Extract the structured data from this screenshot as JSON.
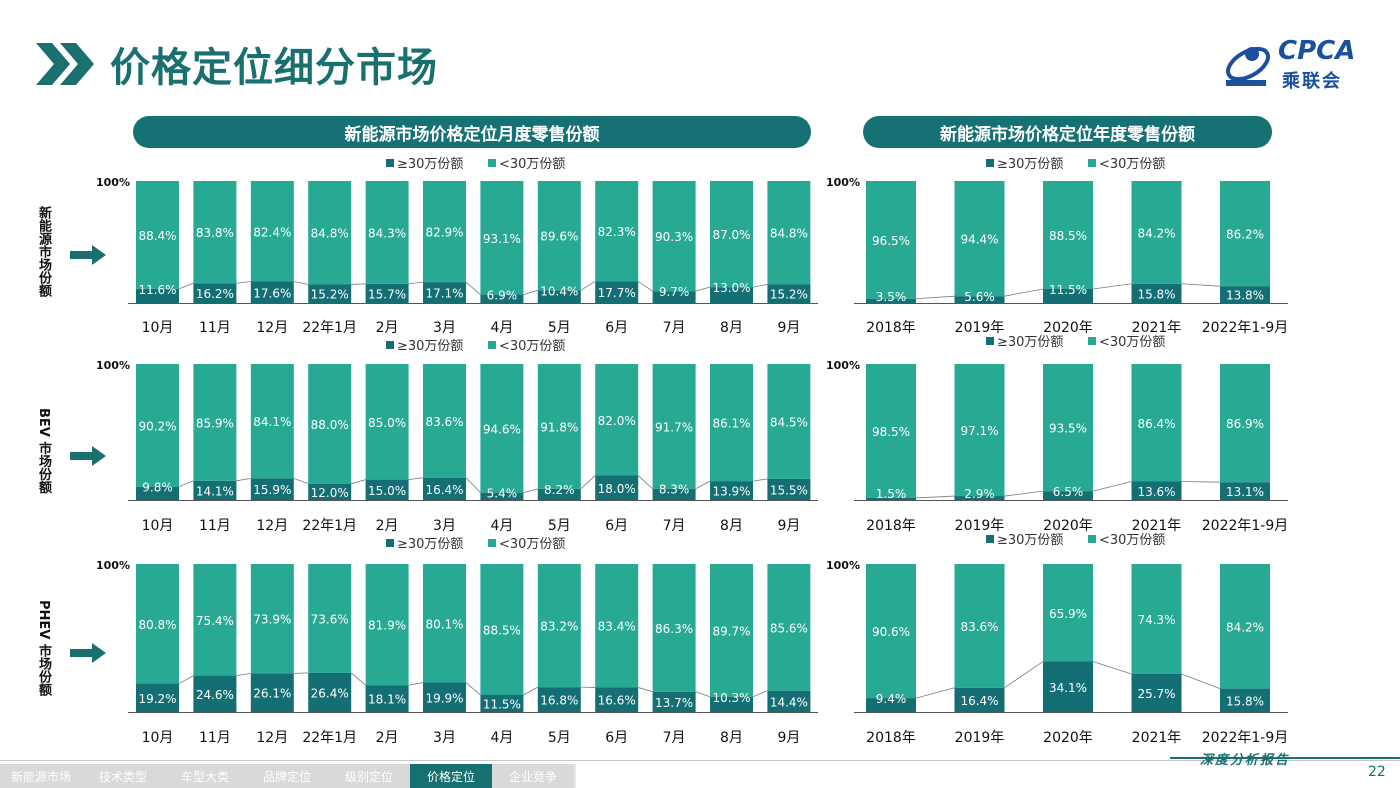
{
  "page": {
    "title": "价格定位细分市场",
    "logo_text": "CPCA",
    "logo_sub": "乘联会",
    "page_number": "22",
    "footer_brand": "深度分析报告"
  },
  "banners": {
    "monthly": "新能源市场价格定位月度零售份额",
    "yearly": "新能源市场价格定位年度零售份额"
  },
  "row_labels": [
    "新能源市场份额",
    "BEV 市场份额",
    "PHEV 市场份额"
  ],
  "nav": {
    "items": [
      "新能源市场",
      "技术类型",
      "车型大类",
      "品牌定位",
      "级别定位",
      "价格定位",
      "企业竞争"
    ],
    "active_index": 5
  },
  "colors": {
    "high": "#136f73",
    "low": "#27a994",
    "accent": "#1a6f6f"
  },
  "chart_data": [
    {
      "id": "nev-monthly",
      "type": "bar",
      "stacked": true,
      "ymax_label": "100%",
      "categories": [
        "10月",
        "11月",
        "12月",
        "22年1月",
        "2月",
        "3月",
        "4月",
        "5月",
        "6月",
        "7月",
        "8月",
        "9月"
      ],
      "legend": [
        "≥30万份额",
        "<30万份额"
      ],
      "series": [
        {
          "name": "≥30万份额",
          "values": [
            11.6,
            16.2,
            17.6,
            15.2,
            15.7,
            17.1,
            6.9,
            10.4,
            17.7,
            9.7,
            13.0,
            15.2
          ]
        },
        {
          "name": "<30万份额",
          "values": [
            88.4,
            83.8,
            82.4,
            84.8,
            84.3,
            82.9,
            93.1,
            89.6,
            82.3,
            90.3,
            87.0,
            84.8
          ]
        }
      ]
    },
    {
      "id": "nev-yearly",
      "type": "bar",
      "stacked": true,
      "ymax_label": "100%",
      "categories": [
        "2018年",
        "2019年",
        "2020年",
        "2021年",
        "2022年1-9月"
      ],
      "legend": [
        "≥30万份额",
        "<30万份额"
      ],
      "series": [
        {
          "name": "≥30万份额",
          "values": [
            3.5,
            5.6,
            11.5,
            15.8,
            13.8
          ]
        },
        {
          "name": "<30万份额",
          "values": [
            96.5,
            94.4,
            88.5,
            84.2,
            86.2
          ]
        }
      ]
    },
    {
      "id": "bev-monthly",
      "type": "bar",
      "stacked": true,
      "ymax_label": "100%",
      "categories": [
        "10月",
        "11月",
        "12月",
        "22年1月",
        "2月",
        "3月",
        "4月",
        "5月",
        "6月",
        "7月",
        "8月",
        "9月"
      ],
      "legend": [
        "≥30万份额",
        "<30万份额"
      ],
      "series": [
        {
          "name": "≥30万份额",
          "values": [
            9.8,
            14.1,
            15.9,
            12.0,
            15.0,
            16.4,
            5.4,
            8.2,
            18.0,
            8.3,
            13.9,
            15.5
          ]
        },
        {
          "name": "<30万份额",
          "values": [
            90.2,
            85.9,
            84.1,
            88.0,
            85.0,
            83.6,
            94.6,
            91.8,
            82.0,
            91.7,
            86.1,
            84.5
          ]
        }
      ]
    },
    {
      "id": "bev-yearly",
      "type": "bar",
      "stacked": true,
      "ymax_label": "100%",
      "categories": [
        "2018年",
        "2019年",
        "2020年",
        "2021年",
        "2022年1-9月"
      ],
      "legend": [
        "≥30万份额",
        "<30万份额"
      ],
      "series": [
        {
          "name": "≥30万份额",
          "values": [
            1.5,
            2.9,
            6.5,
            13.6,
            13.1
          ]
        },
        {
          "name": "<30万份额",
          "values": [
            98.5,
            97.1,
            93.5,
            86.4,
            86.9
          ]
        }
      ]
    },
    {
      "id": "phev-monthly",
      "type": "bar",
      "stacked": true,
      "ymax_label": "100%",
      "categories": [
        "10月",
        "11月",
        "12月",
        "22年1月",
        "2月",
        "3月",
        "4月",
        "5月",
        "6月",
        "7月",
        "8月",
        "9月"
      ],
      "legend": [
        "≥30万份额",
        "<30万份额"
      ],
      "series": [
        {
          "name": "≥30万份额",
          "values": [
            19.2,
            24.6,
            26.1,
            26.4,
            18.1,
            19.9,
            11.5,
            16.8,
            16.6,
            13.7,
            10.3,
            14.4
          ]
        },
        {
          "name": "<30万份额",
          "values": [
            80.8,
            75.4,
            73.9,
            73.6,
            81.9,
            80.1,
            88.5,
            83.2,
            83.4,
            86.3,
            89.7,
            85.6
          ]
        }
      ]
    },
    {
      "id": "phev-yearly",
      "type": "bar",
      "stacked": true,
      "ymax_label": "100%",
      "categories": [
        "2018年",
        "2019年",
        "2020年",
        "2021年",
        "2022年1-9月"
      ],
      "legend": [
        "≥30万份额",
        "<30万份额"
      ],
      "series": [
        {
          "name": "≥30万份额",
          "values": [
            9.4,
            16.4,
            34.1,
            25.7,
            15.8
          ]
        },
        {
          "name": "<30万份额",
          "values": [
            90.6,
            83.6,
            65.9,
            74.3,
            84.2
          ]
        }
      ]
    }
  ]
}
